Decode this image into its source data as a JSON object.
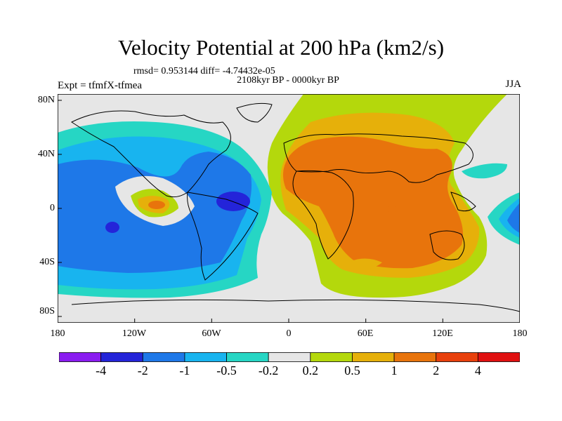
{
  "title": "Velocity Potential at 200 hPa (km2/s)",
  "stats": "rmsd= 0.953144 diff= -4.74432e-05",
  "period": "2108kyr BP - 0000kyr BP",
  "experiment": "Expt = tfmfX-tfmea",
  "season": "JJA",
  "lat_labels": [
    "80N",
    "40N",
    "0",
    "40S",
    "80S"
  ],
  "lon_labels": [
    "180",
    "120W",
    "60W",
    "0",
    "60E",
    "120E",
    "180"
  ],
  "colorbar": {
    "labels": [
      "-4",
      "-2",
      "-1",
      "-0.5",
      "-0.2",
      "0.2",
      "0.5",
      "1",
      "2",
      "4"
    ],
    "colors": [
      "#8a1cf0",
      "#2424d9",
      "#1e78e8",
      "#18b4ef",
      "#26d6c4",
      "#e6e6e6",
      "#b4d80c",
      "#e6b00a",
      "#e8740c",
      "#e8400c",
      "#e01010"
    ]
  },
  "map_colors": {
    "neutral": "#e6e6e6",
    "green": "#b4d80c",
    "yellow": "#e6b00a",
    "orange": "#e8740c",
    "teal": "#26d6c4",
    "lightblue": "#18b4ef",
    "blue": "#1e78e8",
    "darkblue": "#2424d9"
  }
}
